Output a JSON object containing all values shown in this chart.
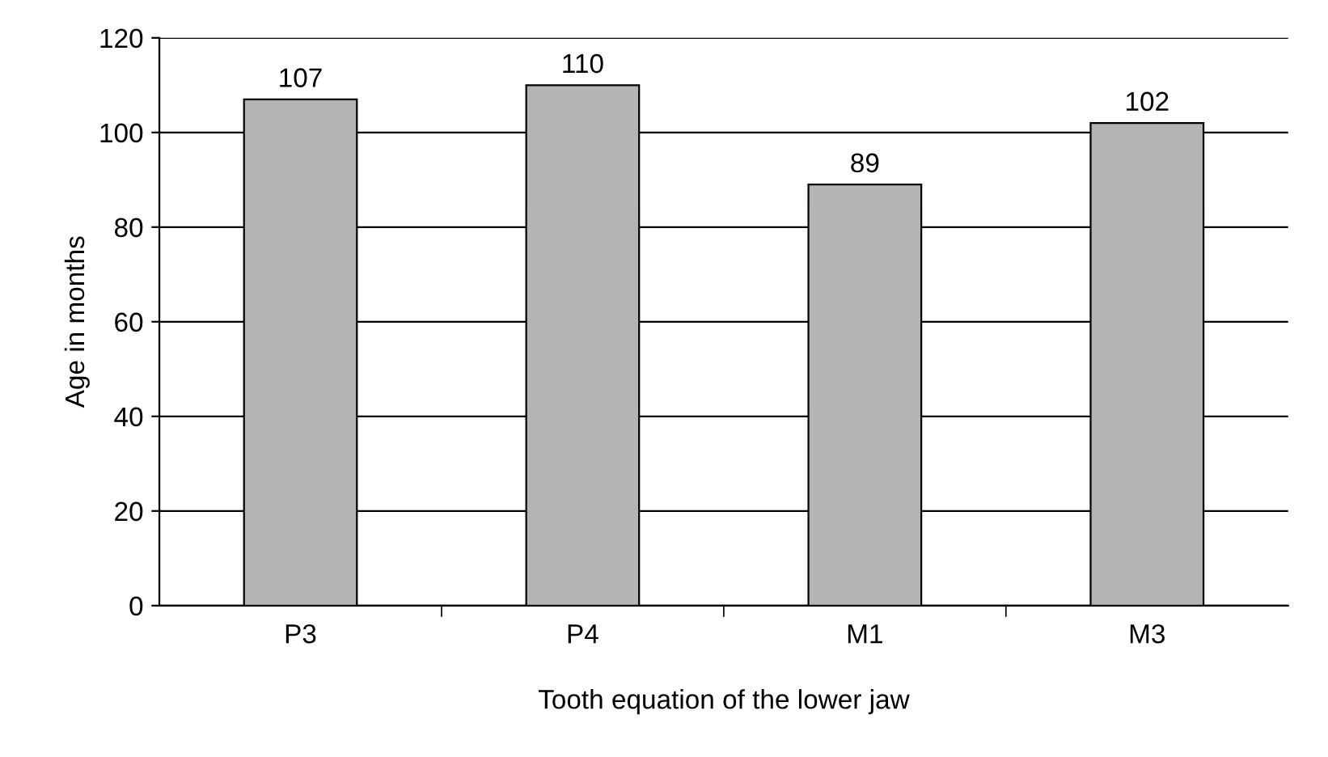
{
  "chart_data": {
    "type": "bar",
    "xlabel": "Tooth equation of the lower jaw",
    "ylabel": "Age in months",
    "categories": [
      "P3",
      "P4",
      "M1",
      "M3"
    ],
    "values": [
      107,
      110,
      89,
      102
    ],
    "color": "#b4b4b4",
    "ylim": [
      0,
      120
    ],
    "yticks": [
      0,
      20,
      40,
      60,
      80,
      100,
      120
    ],
    "grid": "y",
    "data_labels": true
  }
}
